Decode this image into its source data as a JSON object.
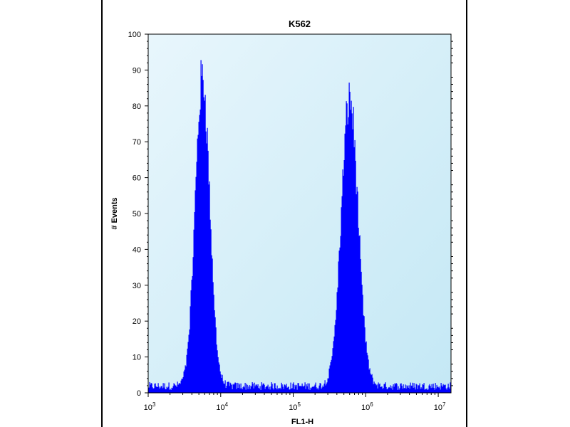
{
  "chart_data": {
    "type": "area",
    "title": "K562",
    "xlabel": "FL1-H",
    "ylabel": "# Events",
    "x_scale": "log",
    "xlim": [
      1000,
      15000000
    ],
    "ylim": [
      0,
      100
    ],
    "y_ticks": [
      "0",
      "10",
      "20",
      "30",
      "40",
      "50",
      "60",
      "70",
      "80",
      "90",
      "100"
    ],
    "x_ticks": [
      {
        "base": "10",
        "exp": "3",
        "value": 1000
      },
      {
        "base": "10",
        "exp": "4",
        "value": 10000
      },
      {
        "base": "10",
        "exp": "5",
        "value": 100000
      },
      {
        "base": "10",
        "exp": "6",
        "value": 1000000
      },
      {
        "base": "10",
        "exp": "7",
        "value": 10000000
      }
    ],
    "grid": false,
    "series": [
      {
        "color": "#0000ff",
        "peaks": [
          {
            "x": 5600,
            "height": 86
          },
          {
            "x": 600000,
            "height": 80
          }
        ],
        "baseline": 2
      }
    ],
    "plot_background": [
      "#e8f6fc",
      "#c4e8f5"
    ]
  }
}
